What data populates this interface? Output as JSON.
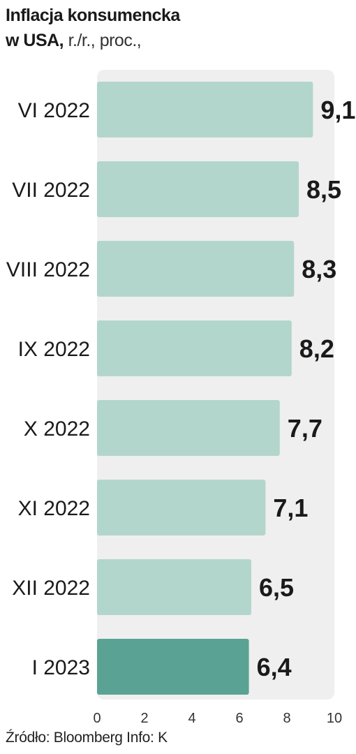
{
  "header": {
    "title_line1": "Inflacja konsumencka",
    "title_line2_bold": "w USA,",
    "title_line2_rest": " r./r., proc.,"
  },
  "footer": {
    "source": "Źródło: Bloomberg Info: K"
  },
  "colors": {
    "bar": "#b3d6cc",
    "bar_highlight": "#5aa394",
    "plot_background": "#efefef",
    "text": "#1a1a1a"
  },
  "chart_data": {
    "type": "bar",
    "orientation": "horizontal",
    "categories": [
      "VI 2022",
      "VII 2022",
      "VIII 2022",
      "IX 2022",
      "X 2022",
      "XI 2022",
      "XII 2022",
      "I 2023"
    ],
    "values": [
      9.1,
      8.5,
      8.3,
      8.2,
      7.7,
      7.1,
      6.5,
      6.4
    ],
    "value_labels": [
      "9,1",
      "8,5",
      "8,3",
      "8,2",
      "7,7",
      "7,1",
      "6,5",
      "6,4"
    ],
    "highlight_index": 7,
    "xlim": [
      0,
      10
    ],
    "xticks": [
      0,
      2,
      4,
      6,
      8,
      10
    ],
    "grid": false
  }
}
